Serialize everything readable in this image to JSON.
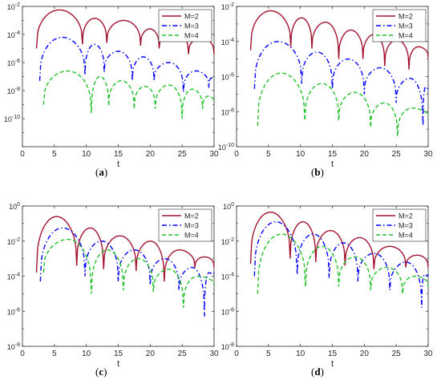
{
  "colors": {
    "M2": "#a2142f",
    "M3": "#0000ff",
    "M4": "#22c12a"
  },
  "chart_data": [
    {
      "type": "line",
      "panel": "a",
      "caption": "a",
      "xlabel": "t",
      "ylabel": "",
      "xlim": [
        0,
        30
      ],
      "xticks": [
        0,
        5,
        10,
        15,
        20,
        25,
        30
      ],
      "yscale": "log",
      "ylim_exp": [
        -12,
        -2
      ],
      "yticks_exp": [
        -2,
        -4,
        -6,
        -8,
        -10
      ],
      "legend": "top-right",
      "grid": false,
      "series": [
        {
          "name": "M=2",
          "color": "#a2142f",
          "dash": "solid",
          "width": 1.4,
          "arches": [
            {
              "x1": 2.2,
              "x2": 9.4,
              "peak": -2.25
            },
            {
              "x1": 9.4,
              "x2": 13.2,
              "peak": -2.85
            },
            {
              "x1": 13.2,
              "x2": 18.5,
              "peak": -3.0
            },
            {
              "x1": 18.5,
              "x2": 21.4,
              "peak": -3.6
            },
            {
              "x1": 21.4,
              "x2": 26.0,
              "peak": -3.85
            },
            {
              "x1": 26.0,
              "x2": 30.0,
              "peak": -4.25
            }
          ],
          "depths": [
            -5.0,
            -4.7,
            -4.6,
            -4.8,
            -5.0,
            -5.4
          ],
          "end": -5.4
        },
        {
          "name": "M=3",
          "color": "#0000ff",
          "dash": "6,3,1.5,3",
          "width": 1.4,
          "arches": [
            {
              "x1": 2.7,
              "x2": 9.8,
              "peak": -4.2
            },
            {
              "x1": 9.8,
              "x2": 12.8,
              "peak": -4.7
            },
            {
              "x1": 12.8,
              "x2": 17.2,
              "peak": -5.2
            },
            {
              "x1": 17.2,
              "x2": 20.6,
              "peak": -5.6
            },
            {
              "x1": 20.6,
              "x2": 25.2,
              "peak": -6.0
            },
            {
              "x1": 25.2,
              "x2": 29.2,
              "peak": -6.6
            },
            {
              "x1": 29.2,
              "x2": 30.0,
              "peak": -7.1
            }
          ],
          "depths": [
            -7.3,
            -6.9,
            -6.7,
            -7.3,
            -7.3,
            -8.1,
            -7.8
          ],
          "end": -7.1
        },
        {
          "name": "M=4",
          "color": "#22c12a",
          "dash": "5,3",
          "width": 1.4,
          "arches": [
            {
              "x1": 3.3,
              "x2": 10.8,
              "peak": -6.6
            },
            {
              "x1": 10.8,
              "x2": 13.5,
              "peak": -7.0
            },
            {
              "x1": 13.5,
              "x2": 17.5,
              "peak": -7.3
            },
            {
              "x1": 17.5,
              "x2": 20.8,
              "peak": -7.7
            },
            {
              "x1": 20.8,
              "x2": 25.0,
              "peak": -7.6
            },
            {
              "x1": 25.0,
              "x2": 28.2,
              "peak": -7.9
            },
            {
              "x1": 28.2,
              "x2": 30.0,
              "peak": -8.4
            }
          ],
          "depths": [
            -9.0,
            -9.6,
            -9.1,
            -9.3,
            -9.3,
            -10.0,
            -9.3
          ],
          "end": -8.8
        }
      ]
    },
    {
      "type": "line",
      "panel": "b",
      "caption": "b",
      "xlabel": "t",
      "ylabel": "",
      "xlim": [
        0,
        30
      ],
      "xticks": [
        0,
        5,
        10,
        15,
        20,
        25,
        30
      ],
      "yscale": "log",
      "ylim_exp": [
        -10,
        -2
      ],
      "yticks_exp": [
        -2,
        -4,
        -6,
        -8,
        -10
      ],
      "legend": "top-right",
      "grid": false,
      "series": [
        {
          "name": "M=2",
          "color": "#a2142f",
          "dash": "solid",
          "width": 1.4,
          "arches": [
            {
              "x1": 2.2,
              "x2": 8.5,
              "peak": -2.25
            },
            {
              "x1": 8.5,
              "x2": 11.8,
              "peak": -2.65
            },
            {
              "x1": 11.8,
              "x2": 16.0,
              "peak": -2.9
            },
            {
              "x1": 16.0,
              "x2": 19.8,
              "peak": -3.35
            },
            {
              "x1": 19.8,
              "x2": 23.2,
              "peak": -3.6
            },
            {
              "x1": 23.2,
              "x2": 27.0,
              "peak": -3.9
            },
            {
              "x1": 27.0,
              "x2": 30.0,
              "peak": -4.3
            }
          ],
          "depths": [
            -4.5,
            -4.3,
            -4.4,
            -5.0,
            -5.0,
            -5.4,
            -5.6
          ],
          "end": -4.9
        },
        {
          "name": "M=3",
          "color": "#0000ff",
          "dash": "6,3,1.5,3",
          "width": 1.4,
          "arches": [
            {
              "x1": 2.8,
              "x2": 10.2,
              "peak": -4.0
            },
            {
              "x1": 10.2,
              "x2": 15.0,
              "peak": -4.6
            },
            {
              "x1": 15.0,
              "x2": 20.0,
              "peak": -5.0
            },
            {
              "x1": 20.0,
              "x2": 25.0,
              "peak": -5.5
            },
            {
              "x1": 25.0,
              "x2": 29.2,
              "peak": -6.1
            },
            {
              "x1": 29.2,
              "x2": 30.0,
              "peak": -6.6
            }
          ],
          "depths": [
            -6.7,
            -6.4,
            -6.7,
            -7.0,
            -7.5,
            -8.8
          ],
          "end": -6.6
        },
        {
          "name": "M=4",
          "color": "#22c12a",
          "dash": "5,3",
          "width": 1.4,
          "arches": [
            {
              "x1": 3.3,
              "x2": 10.7,
              "peak": -5.8
            },
            {
              "x1": 10.7,
              "x2": 16.0,
              "peak": -6.4
            },
            {
              "x1": 16.0,
              "x2": 21.0,
              "peak": -6.9
            },
            {
              "x1": 21.0,
              "x2": 25.2,
              "peak": -7.5
            },
            {
              "x1": 25.2,
              "x2": 30.0,
              "peak": -7.8
            }
          ],
          "depths": [
            -8.8,
            -8.5,
            -8.5,
            -8.9,
            -9.4
          ],
          "end": -8.3
        }
      ]
    },
    {
      "type": "line",
      "panel": "c",
      "caption": "c",
      "xlabel": "t",
      "ylabel": "",
      "xlim": [
        0,
        30
      ],
      "xticks": [
        0,
        5,
        10,
        15,
        20,
        25,
        30
      ],
      "yscale": "log",
      "ylim_exp": [
        -8,
        0
      ],
      "yticks_exp": [
        0,
        -2,
        -4,
        -6,
        -8
      ],
      "legend": "top-right",
      "grid": false,
      "series": [
        {
          "name": "M=2",
          "color": "#a2142f",
          "dash": "solid",
          "width": 1.4,
          "arches": [
            {
              "x1": 2.2,
              "x2": 8.5,
              "peak": -0.6
            },
            {
              "x1": 8.5,
              "x2": 12.7,
              "peak": -1.25
            },
            {
              "x1": 12.7,
              "x2": 17.8,
              "peak": -1.7
            },
            {
              "x1": 17.8,
              "x2": 22.2,
              "peak": -2.0
            },
            {
              "x1": 22.2,
              "x2": 27.0,
              "peak": -2.5
            },
            {
              "x1": 27.0,
              "x2": 30.0,
              "peak": -2.9
            }
          ],
          "depths": [
            -3.8,
            -3.4,
            -3.6,
            -3.7,
            -4.3,
            -3.5
          ],
          "end": -3.5
        },
        {
          "name": "M=3",
          "color": "#0000ff",
          "dash": "6,3,1.5,3",
          "width": 1.4,
          "arches": [
            {
              "x1": 2.8,
              "x2": 9.8,
              "peak": -1.25
            },
            {
              "x1": 9.8,
              "x2": 15.0,
              "peak": -2.0
            },
            {
              "x1": 15.0,
              "x2": 20.0,
              "peak": -2.5
            },
            {
              "x1": 20.0,
              "x2": 24.5,
              "peak": -3.0
            },
            {
              "x1": 24.5,
              "x2": 28.5,
              "peak": -3.5
            },
            {
              "x1": 28.5,
              "x2": 30.0,
              "peak": -3.8
            }
          ],
          "depths": [
            -4.3,
            -4.0,
            -4.3,
            -4.5,
            -4.8,
            -6.3
          ],
          "end": -3.8
        },
        {
          "name": "M=4",
          "color": "#22c12a",
          "dash": "5,3",
          "width": 1.4,
          "arches": [
            {
              "x1": 3.3,
              "x2": 10.8,
              "peak": -1.9
            },
            {
              "x1": 10.8,
              "x2": 15.8,
              "peak": -2.5
            },
            {
              "x1": 15.8,
              "x2": 20.5,
              "peak": -3.0
            },
            {
              "x1": 20.5,
              "x2": 25.2,
              "peak": -3.6
            },
            {
              "x1": 25.2,
              "x2": 30.0,
              "peak": -4.0
            }
          ],
          "depths": [
            -3.8,
            -5.0,
            -4.8,
            -4.9,
            -5.8
          ],
          "end": -4.5
        }
      ]
    },
    {
      "type": "line",
      "panel": "d",
      "caption": "d",
      "xlabel": "t",
      "ylabel": "",
      "xlim": [
        0,
        30
      ],
      "xticks": [
        0,
        5,
        10,
        15,
        20,
        25,
        30
      ],
      "yscale": "log",
      "ylim_exp": [
        -8,
        0
      ],
      "yticks_exp": [
        0,
        -2,
        -4,
        -6,
        -8
      ],
      "legend": "top-right",
      "grid": false,
      "series": [
        {
          "name": "M=2",
          "color": "#a2142f",
          "dash": "solid",
          "width": 1.4,
          "arches": [
            {
              "x1": 2.2,
              "x2": 8.4,
              "peak": -0.35
            },
            {
              "x1": 8.4,
              "x2": 12.4,
              "peak": -0.9
            },
            {
              "x1": 12.4,
              "x2": 17.0,
              "peak": -1.4
            },
            {
              "x1": 17.0,
              "x2": 21.5,
              "peak": -1.8
            },
            {
              "x1": 21.5,
              "x2": 26.5,
              "peak": -2.3
            },
            {
              "x1": 26.5,
              "x2": 30.0,
              "peak": -2.8
            }
          ],
          "depths": [
            -3.3,
            -3.0,
            -3.2,
            -3.4,
            -3.6,
            -3.5
          ],
          "end": -3.5
        },
        {
          "name": "M=3",
          "color": "#0000ff",
          "dash": "6,3,1.5,3",
          "width": 1.4,
          "arches": [
            {
              "x1": 2.8,
              "x2": 9.5,
              "peak": -0.9
            },
            {
              "x1": 9.5,
              "x2": 14.5,
              "peak": -1.6
            },
            {
              "x1": 14.5,
              "x2": 19.0,
              "peak": -2.1
            },
            {
              "x1": 19.0,
              "x2": 24.0,
              "peak": -2.7
            },
            {
              "x1": 24.0,
              "x2": 29.0,
              "peak": -3.2
            },
            {
              "x1": 29.0,
              "x2": 30.0,
              "peak": -3.9
            }
          ],
          "depths": [
            -4.0,
            -3.9,
            -4.1,
            -4.3,
            -4.8,
            -5.8
          ],
          "end": -3.9
        },
        {
          "name": "M=4",
          "color": "#22c12a",
          "dash": "5,3",
          "width": 1.4,
          "arches": [
            {
              "x1": 3.3,
              "x2": 10.8,
              "peak": -1.6
            },
            {
              "x1": 10.8,
              "x2": 16.0,
              "peak": -2.3
            },
            {
              "x1": 16.0,
              "x2": 21.0,
              "peak": -2.9
            },
            {
              "x1": 21.0,
              "x2": 26.0,
              "peak": -3.5
            },
            {
              "x1": 26.0,
              "x2": 30.0,
              "peak": -4.0
            }
          ],
          "depths": [
            -5.0,
            -4.6,
            -4.6,
            -4.8,
            -5.0
          ],
          "end": -4.6
        }
      ]
    }
  ]
}
